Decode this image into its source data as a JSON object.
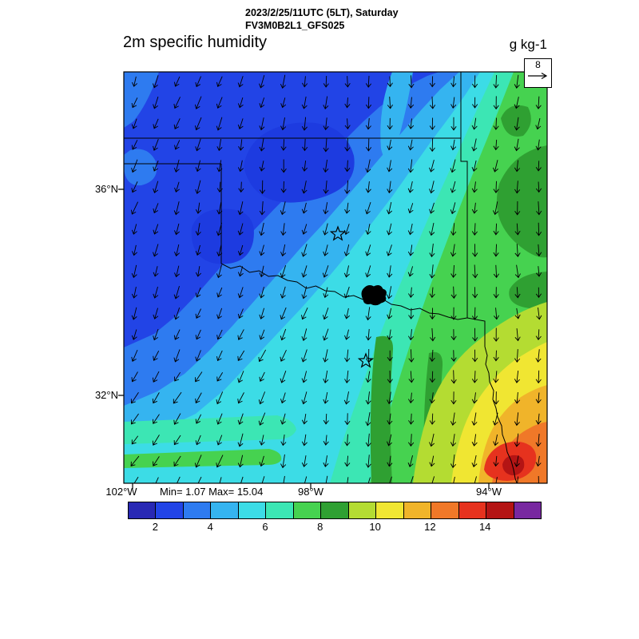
{
  "header": {
    "datetime_line": "2023/2/25/11UTC (5LT), Saturday",
    "model_line": "FV3M0B2L1_GFS025",
    "title_left": "2m specific humidity",
    "units": "g kg-1"
  },
  "map": {
    "stats": "Min= 1.07 Max= 15.04",
    "lat_labels": [
      {
        "text": "36°N"
      },
      {
        "text": "32°N"
      }
    ],
    "lon_labels": [
      {
        "text": "102°W"
      },
      {
        "text": "98°W"
      },
      {
        "text": "94°W"
      }
    ],
    "ref_vector": {
      "label": "8"
    }
  },
  "colorbar": {
    "colors": [
      "#2828b4",
      "#2244e6",
      "#2e7bf0",
      "#35b4f0",
      "#3cdce6",
      "#3ce6b4",
      "#46d250",
      "#2fa032",
      "#b4dc32",
      "#f0e632",
      "#f0b42a",
      "#f07828",
      "#e6321e",
      "#b41414",
      "#7828a0"
    ],
    "tick_labels": [
      "2",
      "4",
      "6",
      "8",
      "10",
      "12",
      "14"
    ]
  },
  "chart_data": {
    "type": "heatmap",
    "title": "2m specific humidity",
    "units": "g kg-1",
    "datetime": "2023/2/25/11UTC (5LT), Saturday",
    "model": "FV3M0B2L1_GFS025",
    "min": 1.07,
    "max": 15.04,
    "colorbar_ticks": [
      2,
      4,
      6,
      8,
      10,
      12,
      14
    ],
    "color_bin_start": 1,
    "color_bin_width": 1,
    "lat_axis_ticks": [
      "36°N",
      "32°N"
    ],
    "lon_axis_ticks": [
      "102°W",
      "98°W",
      "94°W"
    ],
    "lat_range": [
      30.3,
      38.3
    ],
    "lon_range": [
      -102.2,
      -92.7
    ],
    "wind_overlay": {
      "style": "arrows",
      "reference_value": 8,
      "general_direction": "northerly, veering southwest near surface low in west"
    },
    "overlays": [
      "state borders (KS/OK/MO/AR/TX panhandle region)",
      "Red River and Sabine river lines",
      "two star city markers",
      "small lake outline on Red River"
    ],
    "grid_lats": [
      38.3,
      37.4,
      36.5,
      35.6,
      34.7,
      33.8,
      32.9,
      32.0,
      31.1,
      30.3
    ],
    "grid_lons": [
      -102.2,
      -101.1,
      -100.1,
      -99.0,
      -98.0,
      -96.9,
      -95.9,
      -94.8,
      -93.8,
      -92.7
    ],
    "values_g_per_kg": [
      [
        2.5,
        2.0,
        2.0,
        2.0,
        3.0,
        3.5,
        4.0,
        5.0,
        6.0,
        6.5
      ],
      [
        2.5,
        2.0,
        1.5,
        2.0,
        2.5,
        3.0,
        4.5,
        5.5,
        6.5,
        7.0
      ],
      [
        2.0,
        1.5,
        1.5,
        2.0,
        2.5,
        3.5,
        5.0,
        6.0,
        7.5,
        7.0
      ],
      [
        2.5,
        2.0,
        2.0,
        2.5,
        3.0,
        4.0,
        5.5,
        6.5,
        7.5,
        7.5
      ],
      [
        3.0,
        2.5,
        2.5,
        3.0,
        4.0,
        5.0,
        6.0,
        7.0,
        8.0,
        7.5
      ],
      [
        3.5,
        3.0,
        3.5,
        4.0,
        5.0,
        6.0,
        6.5,
        7.5,
        8.0,
        8.0
      ],
      [
        4.0,
        4.0,
        4.5,
        5.0,
        5.5,
        6.5,
        7.0,
        8.0,
        9.0,
        9.5
      ],
      [
        4.5,
        4.5,
        5.0,
        5.5,
        6.0,
        7.0,
        8.0,
        9.0,
        10.0,
        10.0
      ],
      [
        5.0,
        5.0,
        5.5,
        6.0,
        7.0,
        7.5,
        9.0,
        10.5,
        12.0,
        11.0
      ],
      [
        5.0,
        5.5,
        6.0,
        6.5,
        7.0,
        8.5,
        10.0,
        12.0,
        15.0,
        13.0
      ]
    ]
  }
}
